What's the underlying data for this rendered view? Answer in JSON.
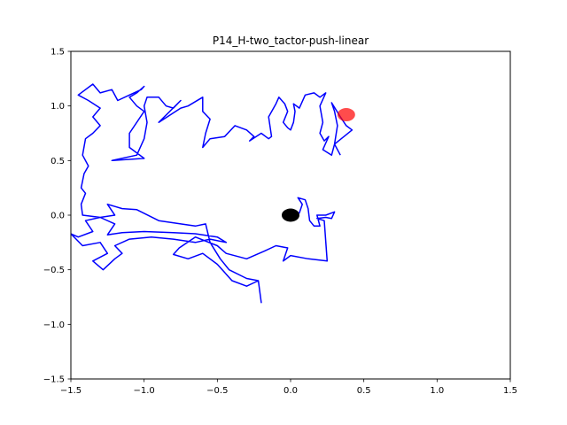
{
  "chart_data": {
    "type": "line",
    "title": "P14_H-two_tactor-push-linear",
    "xlabel": "",
    "ylabel": "",
    "xlim": [
      -1.5,
      1.5
    ],
    "ylim": [
      -1.5,
      1.5
    ],
    "xticks": [
      -1.5,
      -1.0,
      -0.5,
      0.0,
      0.5,
      1.0,
      1.5
    ],
    "xtick_labels": [
      "−1.5",
      "−1.0",
      "−0.5",
      "0.0",
      "0.5",
      "1.0",
      "1.5"
    ],
    "yticks": [
      -1.5,
      -1.0,
      -0.5,
      0.0,
      0.5,
      1.0,
      1.5
    ],
    "ytick_labels": [
      "−1.5",
      "−1.0",
      "−0.5",
      "0.0",
      "0.5",
      "1.0",
      "1.5"
    ],
    "grid": false,
    "series": [
      {
        "color": "#0000ff",
        "points": [
          [
            0.0,
            0.0
          ],
          [
            0.06,
            0.02
          ],
          [
            0.08,
            0.1
          ],
          [
            0.05,
            0.16
          ],
          [
            0.1,
            0.14
          ],
          [
            0.12,
            0.06
          ],
          [
            0.13,
            -0.05
          ],
          [
            0.16,
            -0.1
          ],
          [
            0.2,
            -0.1
          ],
          [
            0.18,
            0.0
          ],
          [
            0.24,
            0.0
          ],
          [
            0.3,
            0.03
          ],
          [
            0.28,
            -0.03
          ],
          [
            0.24,
            -0.02
          ],
          [
            0.18,
            -0.03
          ],
          [
            0.23,
            -0.05
          ],
          [
            0.25,
            -0.42
          ],
          [
            0.12,
            -0.4
          ],
          [
            0.0,
            -0.37
          ],
          [
            -0.05,
            -0.42
          ],
          [
            -0.02,
            -0.3
          ],
          [
            -0.1,
            -0.28
          ],
          [
            -0.18,
            -0.33
          ],
          [
            -0.3,
            -0.4
          ],
          [
            -0.44,
            -0.35
          ],
          [
            -0.5,
            -0.28
          ],
          [
            -0.65,
            -0.2
          ],
          [
            -0.76,
            -0.3
          ],
          [
            -0.8,
            -0.36
          ],
          [
            -0.7,
            -0.4
          ],
          [
            -0.6,
            -0.35
          ],
          [
            -0.5,
            -0.45
          ],
          [
            -0.4,
            -0.6
          ],
          [
            -0.3,
            -0.65
          ],
          [
            -0.22,
            -0.6
          ],
          [
            -0.2,
            -0.8
          ],
          [
            -0.22,
            -0.6
          ],
          [
            -0.3,
            -0.58
          ],
          [
            -0.42,
            -0.5
          ],
          [
            -0.48,
            -0.4
          ],
          [
            -0.55,
            -0.25
          ],
          [
            -0.58,
            -0.08
          ],
          [
            -0.65,
            -0.1
          ],
          [
            -0.75,
            -0.08
          ],
          [
            -0.9,
            -0.05
          ],
          [
            -1.05,
            0.05
          ],
          [
            -1.15,
            0.06
          ],
          [
            -1.25,
            0.1
          ],
          [
            -1.2,
            0.0
          ],
          [
            -1.3,
            -0.02
          ],
          [
            -1.4,
            -0.05
          ],
          [
            -1.35,
            -0.15
          ],
          [
            -1.45,
            -0.2
          ],
          [
            -1.5,
            -0.17
          ],
          [
            -1.42,
            -0.28
          ],
          [
            -1.3,
            -0.25
          ],
          [
            -1.25,
            -0.35
          ],
          [
            -1.35,
            -0.42
          ],
          [
            -1.28,
            -0.5
          ],
          [
            -1.2,
            -0.4
          ],
          [
            -1.15,
            -0.35
          ],
          [
            -1.2,
            -0.28
          ],
          [
            -1.1,
            -0.22
          ],
          [
            -0.95,
            -0.2
          ],
          [
            -0.8,
            -0.22
          ],
          [
            -0.65,
            -0.25
          ],
          [
            -0.55,
            -0.22
          ],
          [
            -0.44,
            -0.25
          ],
          [
            -0.5,
            -0.2
          ],
          [
            -0.65,
            -0.17
          ],
          [
            -0.8,
            -0.16
          ],
          [
            -1.0,
            -0.15
          ],
          [
            -1.15,
            -0.16
          ],
          [
            -1.25,
            -0.18
          ],
          [
            -1.2,
            -0.08
          ],
          [
            -1.3,
            -0.02
          ],
          [
            -1.42,
            0.0
          ],
          [
            -1.43,
            0.1
          ],
          [
            -1.4,
            0.2
          ],
          [
            -1.43,
            0.25
          ],
          [
            -1.41,
            0.38
          ],
          [
            -1.38,
            0.45
          ],
          [
            -1.42,
            0.55
          ],
          [
            -1.4,
            0.7
          ],
          [
            -1.35,
            0.75
          ],
          [
            -1.3,
            0.82
          ],
          [
            -1.35,
            0.9
          ],
          [
            -1.3,
            0.98
          ],
          [
            -1.38,
            1.05
          ],
          [
            -1.45,
            1.1
          ],
          [
            -1.35,
            1.2
          ],
          [
            -1.3,
            1.12
          ],
          [
            -1.22,
            1.15
          ],
          [
            -1.18,
            1.05
          ],
          [
            -1.1,
            1.1
          ],
          [
            -1.02,
            1.15
          ],
          [
            -1.0,
            1.18
          ],
          [
            -1.05,
            1.12
          ],
          [
            -1.1,
            1.08
          ],
          [
            -1.05,
            1.0
          ],
          [
            -1.0,
            0.95
          ],
          [
            -1.1,
            0.75
          ],
          [
            -1.1,
            0.62
          ],
          [
            -1.0,
            0.52
          ],
          [
            -1.22,
            0.5
          ],
          [
            -1.05,
            0.55
          ],
          [
            -1.0,
            0.7
          ],
          [
            -0.98,
            0.85
          ],
          [
            -1.0,
            1.0
          ],
          [
            -0.98,
            1.08
          ],
          [
            -0.9,
            1.08
          ],
          [
            -0.85,
            1.0
          ],
          [
            -0.8,
            0.98
          ],
          [
            -0.75,
            1.05
          ],
          [
            -0.9,
            0.85
          ],
          [
            -0.75,
            0.98
          ],
          [
            -0.7,
            1.0
          ],
          [
            -0.6,
            1.08
          ],
          [
            -0.6,
            0.95
          ],
          [
            -0.55,
            0.88
          ],
          [
            -0.58,
            0.75
          ],
          [
            -0.6,
            0.62
          ],
          [
            -0.55,
            0.7
          ],
          [
            -0.45,
            0.72
          ],
          [
            -0.38,
            0.82
          ],
          [
            -0.3,
            0.78
          ],
          [
            -0.25,
            0.72
          ],
          [
            -0.28,
            0.68
          ],
          [
            -0.2,
            0.75
          ],
          [
            -0.15,
            0.7
          ],
          [
            -0.13,
            0.72
          ],
          [
            -0.15,
            0.9
          ],
          [
            -0.1,
            1.02
          ],
          [
            -0.08,
            1.08
          ],
          [
            -0.04,
            1.02
          ],
          [
            -0.02,
            0.95
          ],
          [
            -0.05,
            0.85
          ],
          [
            -0.02,
            0.8
          ],
          [
            0.0,
            0.78
          ],
          [
            0.02,
            0.85
          ],
          [
            0.03,
            0.95
          ],
          [
            0.02,
            1.02
          ],
          [
            0.06,
            0.98
          ],
          [
            0.1,
            1.1
          ],
          [
            0.16,
            1.12
          ],
          [
            0.2,
            1.08
          ],
          [
            0.24,
            1.12
          ],
          [
            0.2,
            1.0
          ],
          [
            0.22,
            0.85
          ],
          [
            0.2,
            0.75
          ],
          [
            0.23,
            0.68
          ],
          [
            0.26,
            0.72
          ],
          [
            0.22,
            0.6
          ],
          [
            0.28,
            0.55
          ],
          [
            0.3,
            0.65
          ],
          [
            0.32,
            0.82
          ],
          [
            0.3,
            0.95
          ],
          [
            0.28,
            1.03
          ],
          [
            0.34,
            0.9
          ],
          [
            0.38,
            0.82
          ],
          [
            0.42,
            0.78
          ],
          [
            0.3,
            0.65
          ],
          [
            0.34,
            0.55
          ]
        ]
      }
    ],
    "markers": [
      {
        "x": 0.0,
        "y": 0.0,
        "color": "#000000",
        "alpha": 1.0
      },
      {
        "x": 0.38,
        "y": 0.92,
        "color": "#ff0000",
        "alpha": 0.7
      }
    ]
  }
}
